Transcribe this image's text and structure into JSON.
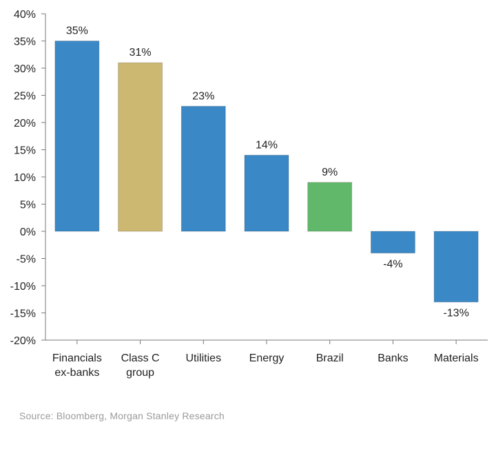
{
  "chart_data": {
    "type": "bar",
    "categories": [
      "Financials\nex-banks",
      "Class C\ngroup",
      "Utilities",
      "Energy",
      "Brazil",
      "Banks",
      "Materials"
    ],
    "values": [
      35,
      31,
      23,
      14,
      9,
      -4,
      -13
    ],
    "value_labels": [
      "35%",
      "31%",
      "23%",
      "14%",
      "9%",
      "-4%",
      "-13%"
    ],
    "bar_colors": [
      "#3a88c6",
      "#cdb872",
      "#3a88c6",
      "#3a88c6",
      "#62b86a",
      "#3a88c6",
      "#3a88c6"
    ],
    "ylim": [
      -20,
      40
    ],
    "yticks": [
      40,
      35,
      30,
      25,
      20,
      15,
      10,
      5,
      0,
      -5,
      -10,
      -15,
      -20
    ],
    "ytick_labels": [
      "40%",
      "35%",
      "30%",
      "25%",
      "20%",
      "15%",
      "10%",
      "5%",
      "0%",
      "-5%",
      "-10%",
      "-15%",
      "-20%"
    ],
    "grid": false,
    "title": "",
    "xlabel": "",
    "ylabel": ""
  },
  "source": "Source: Bloomberg, Morgan Stanley Research"
}
